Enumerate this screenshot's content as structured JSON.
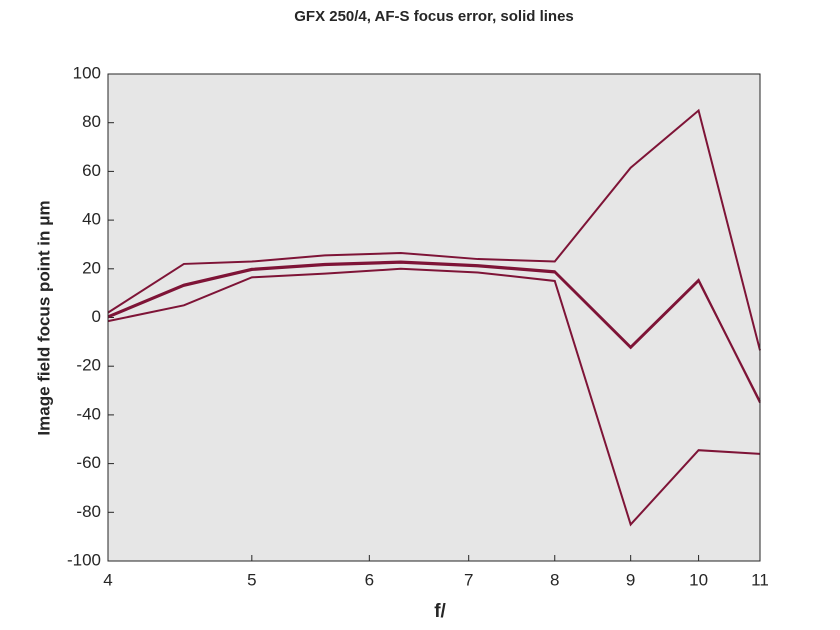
{
  "chart_data": {
    "type": "line",
    "title": "GFX 250/4, AF-S focus error, solid lines",
    "x_label": "f/",
    "y_label": "Image field focus point in μm",
    "x_scale": "log",
    "x": [
      4,
      4.5,
      5,
      5.6,
      6.3,
      7.1,
      8,
      9,
      10,
      11
    ],
    "series": [
      {
        "color": "#7e1437",
        "values": [
          2,
          22,
          23,
          25.5,
          26.5,
          24,
          23,
          61.5,
          85,
          -13.5
        ]
      },
      {
        "color": "#7e1437",
        "values": [
          0.5,
          13.5,
          20,
          22,
          23,
          21.5,
          19,
          -12,
          15.5,
          -35
        ]
      },
      {
        "color": "#7e1437",
        "values": [
          0,
          13,
          19.5,
          21.5,
          22.5,
          21,
          18.5,
          -12.5,
          15,
          -34.5
        ]
      },
      {
        "color": "#7e1437",
        "values": [
          -1.5,
          5,
          16.5,
          18,
          20,
          18.5,
          15,
          -85,
          -54.5,
          -56
        ]
      }
    ],
    "xlim": [
      4,
      11
    ],
    "xticks": [
      4,
      5,
      6,
      7,
      8,
      9,
      10,
      11
    ],
    "ylim": [
      -100,
      100
    ],
    "yticks": [
      -100,
      -80,
      -60,
      -40,
      -20,
      0,
      20,
      40,
      60,
      80,
      100
    ],
    "plot_background": "#e6e6e6"
  }
}
